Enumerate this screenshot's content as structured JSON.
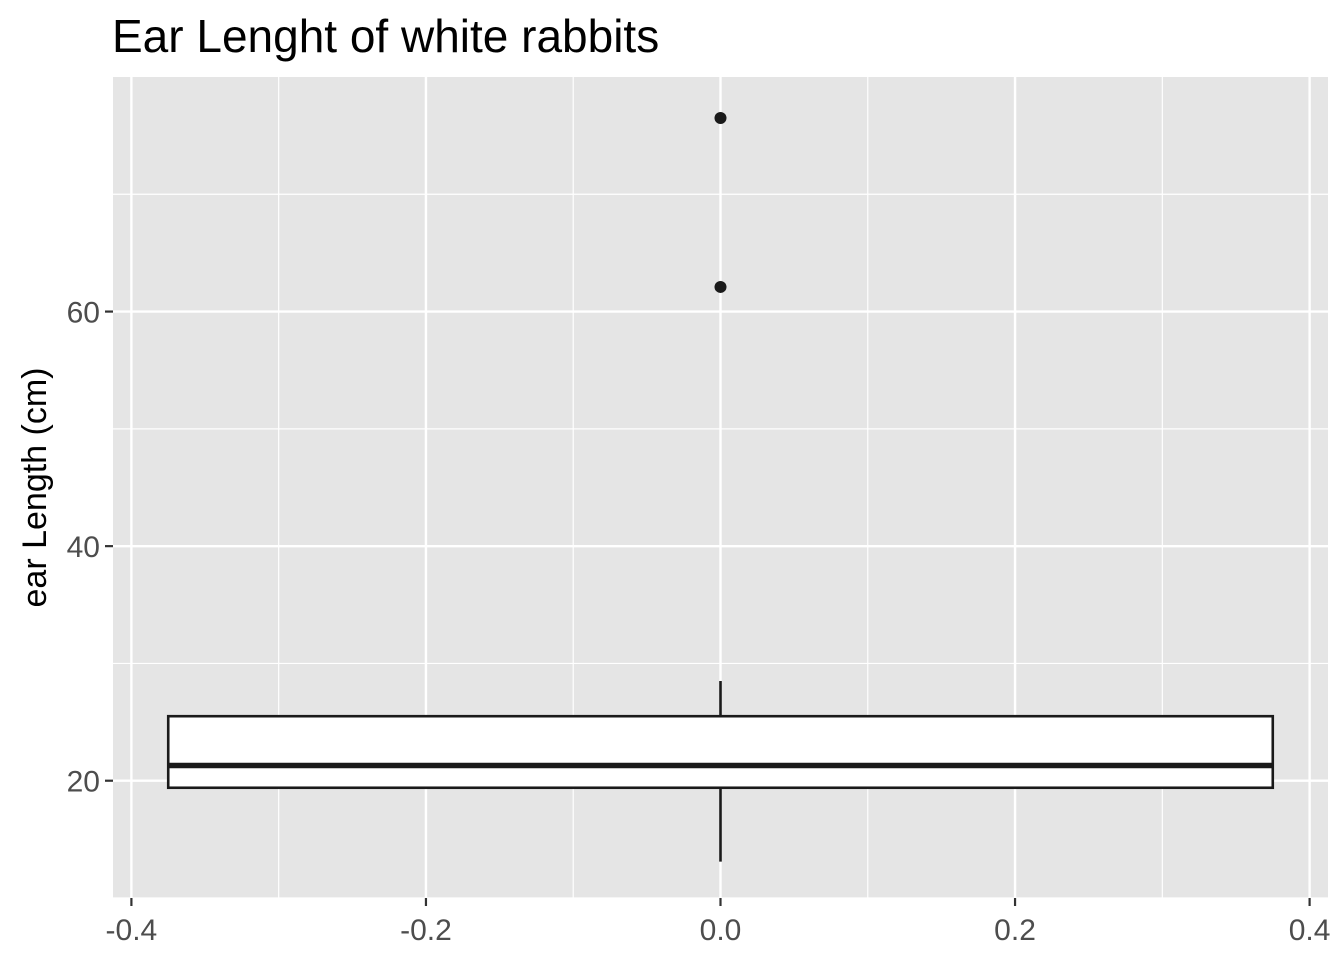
{
  "chart_data": {
    "type": "boxplot",
    "title": "Ear Lenght of white rabbits",
    "xlabel": "",
    "ylabel": "ear Length (cm)",
    "xlim": [
      -0.4125,
      0.4125
    ],
    "ylim": [
      10,
      80
    ],
    "x_ticks": [
      -0.4,
      -0.2,
      0.0,
      0.2,
      0.4
    ],
    "x_tick_labels": [
      "-0.4",
      "-0.2",
      "0.0",
      "0.2",
      "0.4"
    ],
    "y_ticks": [
      20,
      40,
      60
    ],
    "y_tick_labels": [
      "20",
      "40",
      "60"
    ],
    "grid": true,
    "background": "#e5e5e5",
    "box": {
      "x_center": 0.0,
      "x_range": [
        -0.375,
        0.375
      ],
      "whisker_low": 13.1,
      "q1": 19.4,
      "median": 21.3,
      "q3": 25.5,
      "whisker_high": 28.5,
      "outliers": [
        62.1,
        76.5
      ],
      "fill": "#ffffff",
      "stroke": "#1a1a1a"
    }
  }
}
